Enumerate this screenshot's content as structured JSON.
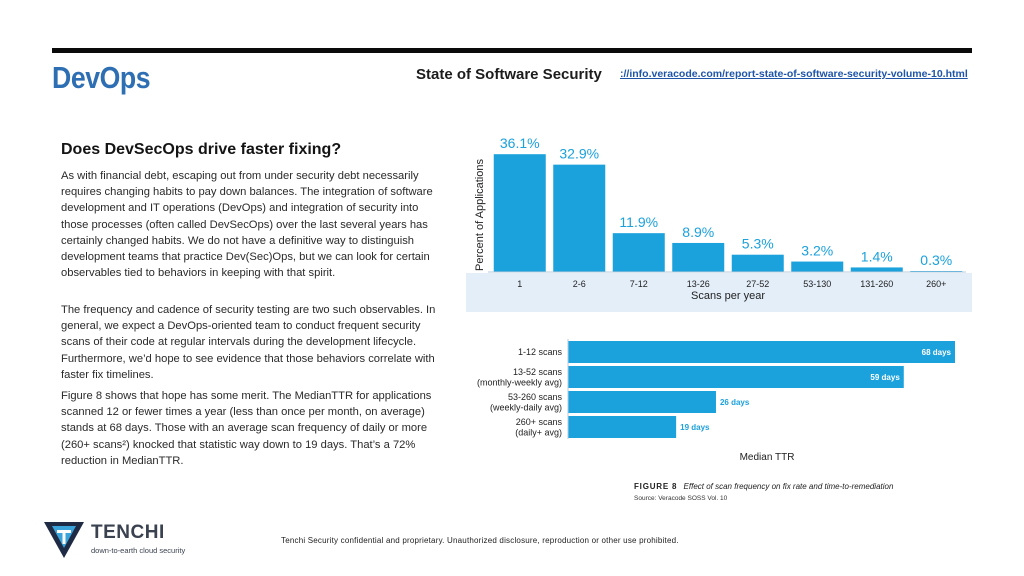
{
  "slide": {
    "title": "DevOps",
    "report_name": "State of Software Security",
    "report_link": "://info.veracode.com/report-state-of-software-security-volume-10.html"
  },
  "article": {
    "heading": "Does DevSecOps drive faster fixing?",
    "paragraphs": [
      "As with financial debt, escaping out from under security debt necessarily requires changing habits to pay down balances. The integration of software development and IT operations (DevOps) and integration of security into those processes (often called DevSecOps) over the last several years has certainly changed habits. We do not have a definitive way to distinguish development teams that practice Dev(Sec)Ops, but we can look for certain observables tied to behaviors in keeping with that spirit.",
      "The frequency and cadence of security testing are two such observables. In general, we expect a DevOps-oriented team to conduct frequent security scans of their code at regular intervals during the development lifecycle. Furthermore, we’d hope to see evidence that those behaviors correlate with faster fix timelines.",
      "Figure 8 shows that hope has some merit. The MedianTTR for applications scanned 12 or fewer times a year (less than once per month, on average) stands at 68 days. Those with an average scan frequency of daily or more (260+ scans²) knocked that statistic way down to 19 days. That’s a 72% reduction in MedianTTR."
    ]
  },
  "chart_data": [
    {
      "type": "bar",
      "categories": [
        "1",
        "2-6",
        "7-12",
        "13-26",
        "27-52",
        "53-130",
        "131-260",
        "260+"
      ],
      "values": [
        36.1,
        32.9,
        11.9,
        8.9,
        5.3,
        3.2,
        1.4,
        0.3
      ],
      "value_labels": [
        "36.1%",
        "32.9%",
        "11.9%",
        "8.9%",
        "5.3%",
        "3.2%",
        "1.4%",
        "0.3%"
      ],
      "xlabel": "Scans per year",
      "ylabel": "Percent of Applications",
      "ylim": [
        0,
        38
      ],
      "bar_color": "#1ba1dc",
      "label_color": "#1ba1dc"
    },
    {
      "type": "bar",
      "orientation": "horizontal",
      "categories": [
        [
          "1-12 scans"
        ],
        [
          "13-52 scans",
          "(monthly-weekly avg)"
        ],
        [
          "53-260 scans",
          "(weekly-daily avg)"
        ],
        [
          "260+ scans",
          "(daily+ avg)"
        ]
      ],
      "values": [
        68,
        59,
        26,
        19
      ],
      "value_labels": [
        "68 days",
        "59 days",
        "26 days",
        "19 days"
      ],
      "xlabel": "Median TTR",
      "xlim": [
        0,
        68
      ],
      "bar_color": "#1ba1dc",
      "label_color": "#1ba1dc"
    }
  ],
  "figure": {
    "label": "FIGURE 8",
    "caption": "Effect of scan frequency on fix rate and time-to-remediation",
    "source": "Source: Veracode SOSS Vol. 10"
  },
  "brand": {
    "name": "TENCHI",
    "tagline": "down-to-earth cloud security",
    "mark_color_dark": "#1f2a44",
    "mark_color_light": "#3aa3d9"
  },
  "footer": {
    "notice": "Tenchi Security confidential and proprietary. Unauthorized disclosure, reproduction or other use prohibited."
  },
  "colors": {
    "title": "#2e6fb3",
    "link": "#1f55a8",
    "accent": "#1ba1dc",
    "band": "#e3eef9"
  }
}
